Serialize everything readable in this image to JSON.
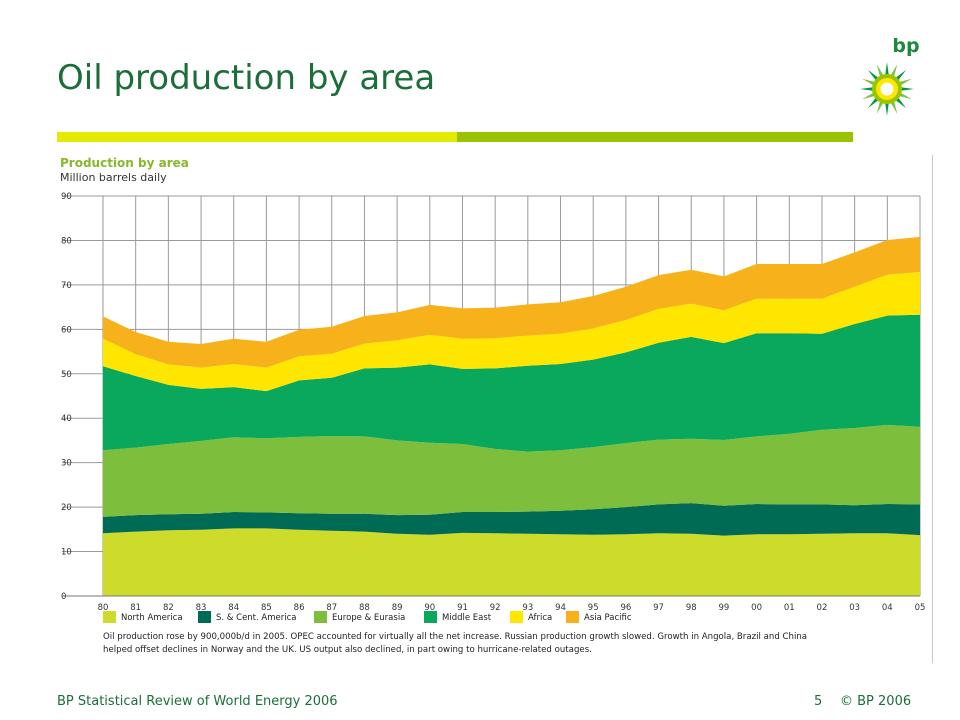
{
  "slide": {
    "title": "Oil production by area",
    "brand": "bp",
    "footer_left": "BP Statistical Review of World Energy 2006",
    "page_number": "5",
    "copyright": "© BP 2006"
  },
  "chart_data": {
    "type": "area",
    "stacked": true,
    "title": "Production by area",
    "subtitle": "Million barrels daily",
    "ylim": [
      0,
      90
    ],
    "yticks": [
      0,
      10,
      20,
      30,
      40,
      50,
      60,
      70,
      80,
      90
    ],
    "categories": [
      "80",
      "81",
      "82",
      "83",
      "84",
      "85",
      "86",
      "87",
      "88",
      "89",
      "90",
      "91",
      "92",
      "93",
      "94",
      "95",
      "96",
      "97",
      "98",
      "99",
      "00",
      "01",
      "02",
      "03",
      "04",
      "05"
    ],
    "grid": true,
    "legend_position": "bottom",
    "series": [
      {
        "name": "North America",
        "color": "#cddc2b",
        "values": [
          14.1,
          14.5,
          14.8,
          14.9,
          15.2,
          15.2,
          14.9,
          14.7,
          14.5,
          14.0,
          13.8,
          14.2,
          14.1,
          14.0,
          13.9,
          13.8,
          13.9,
          14.1,
          14.0,
          13.6,
          13.9,
          13.9,
          14.0,
          14.1,
          14.1,
          13.7
        ]
      },
      {
        "name": "S. & Cent. America",
        "color": "#006b54",
        "values": [
          3.7,
          3.7,
          3.6,
          3.6,
          3.7,
          3.6,
          3.7,
          3.8,
          4.0,
          4.2,
          4.5,
          4.7,
          4.8,
          5.0,
          5.3,
          5.7,
          6.1,
          6.5,
          6.9,
          6.7,
          6.8,
          6.7,
          6.6,
          6.3,
          6.6,
          6.9
        ]
      },
      {
        "name": "Europe & Eurasia",
        "color": "#7dbe3c",
        "values": [
          15.0,
          15.2,
          15.8,
          16.4,
          16.8,
          16.7,
          17.2,
          17.5,
          17.4,
          16.8,
          16.2,
          15.3,
          14.2,
          13.5,
          13.6,
          14.0,
          14.4,
          14.6,
          14.5,
          14.8,
          15.2,
          15.9,
          16.8,
          17.4,
          17.8,
          17.5
        ]
      },
      {
        "name": "Middle East",
        "color": "#0aa85c",
        "values": [
          18.9,
          16.1,
          13.3,
          11.7,
          11.3,
          10.6,
          12.7,
          13.1,
          15.3,
          16.4,
          17.6,
          16.9,
          18.1,
          19.3,
          19.4,
          19.7,
          20.4,
          21.8,
          22.9,
          21.8,
          23.2,
          22.6,
          21.6,
          23.4,
          24.6,
          25.2
        ]
      },
      {
        "name": "Africa",
        "color": "#ffe600",
        "values": [
          6.2,
          4.9,
          4.6,
          4.8,
          5.2,
          5.3,
          5.4,
          5.4,
          5.6,
          6.1,
          6.7,
          6.8,
          6.8,
          6.8,
          6.8,
          7.0,
          7.3,
          7.6,
          7.5,
          7.4,
          7.8,
          7.8,
          7.9,
          8.4,
          9.2,
          9.6
        ]
      },
      {
        "name": "Asia Pacific",
        "color": "#f7b21b",
        "values": [
          5.0,
          5.0,
          5.1,
          5.3,
          5.7,
          5.8,
          6.0,
          6.1,
          6.2,
          6.3,
          6.7,
          6.8,
          6.9,
          7.0,
          7.1,
          7.3,
          7.5,
          7.6,
          7.6,
          7.6,
          7.8,
          7.8,
          7.8,
          7.7,
          7.8,
          7.9
        ]
      }
    ],
    "note_lines": [
      "Oil production rose by 900,000b/d in 2005. OPEC accounted for virtually all the net increase. Russian production growth slowed. Growth in Angola, Brazil and China",
      "helped offset declines in Norway and the UK. US output also declined, in part owing to hurricane-related outages."
    ]
  }
}
